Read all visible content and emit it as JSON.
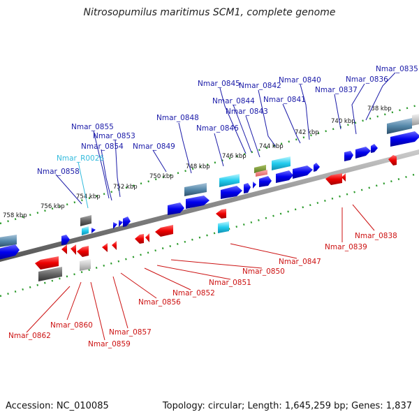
{
  "title": "Nitrosopumilus maritimus SCM1, complete genome",
  "footer": {
    "accession": "Accession: NC_010085",
    "info": "Topology: circular; Length: 1,645,259 bp; Genes: 1,837"
  },
  "colors": {
    "forward_gene": "#0000ee",
    "reverse_gene": "#ee0000",
    "rna_gene": "#22ccee",
    "pseudo_gene": "#5588aa",
    "backbone": "#888888",
    "tick": "#228822",
    "forward_label": "#1a1aa8",
    "reverse_label": "#cc1111",
    "rna_label": "#33bbdd"
  },
  "kbp_ticks": [
    "758 kbp",
    "756 kbp",
    "754 kbp",
    "752 kbp",
    "750 kbp",
    "748 kbp",
    "746 kbp",
    "744 kbp",
    "742 kbp",
    "740 kbp",
    "738 kbp"
  ],
  "forward_labels": [
    "Nmar_0835",
    "Nmar_0836",
    "Nmar_0837",
    "Nmar_0840",
    "Nmar_0842",
    "Nmar_0845",
    "Nmar_0844",
    "Nmar_0843",
    "Nmar_0841",
    "Nmar_0848",
    "Nmar_0846",
    "Nmar_0855",
    "Nmar_0853",
    "Nmar_0854",
    "Nmar_0849",
    "Nmar_R0026",
    "Nmar_0858"
  ],
  "reverse_labels": [
    "Nmar_0838",
    "Nmar_0839",
    "Nmar_0847",
    "Nmar_0850",
    "Nmar_0851",
    "Nmar_0852",
    "Nmar_0856",
    "Nmar_0857",
    "Nmar_0859",
    "Nmar_0860",
    "Nmar_0862"
  ]
}
